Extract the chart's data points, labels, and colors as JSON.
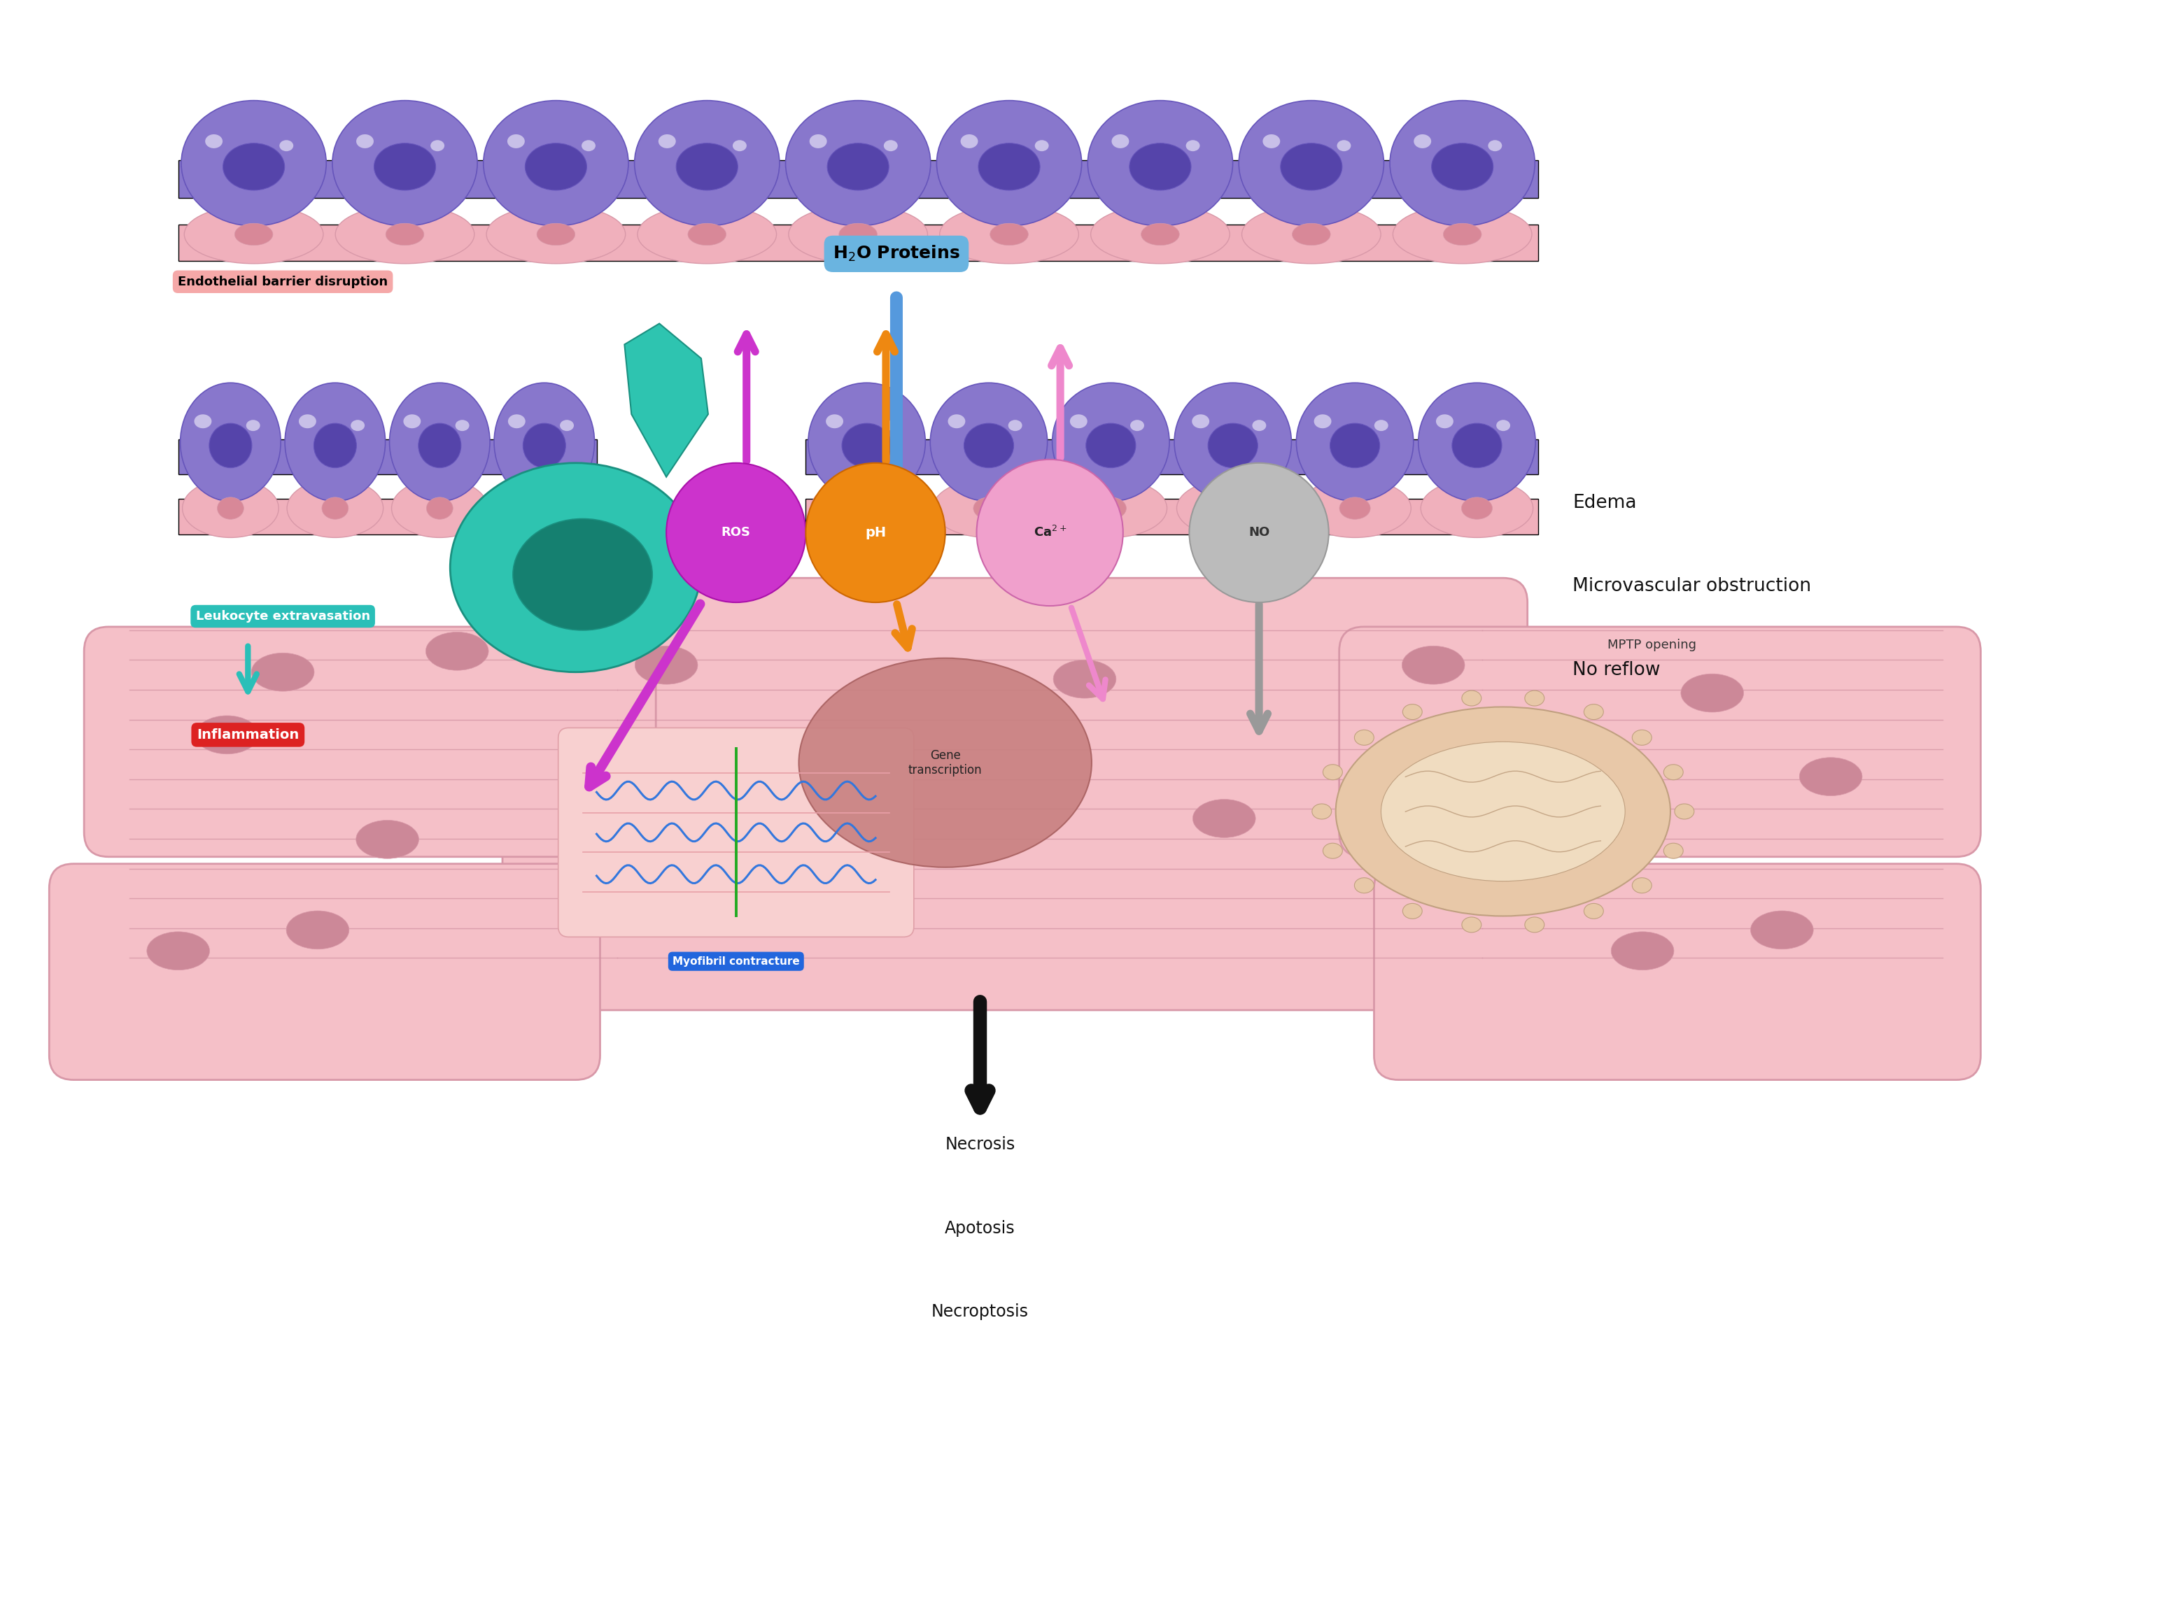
{
  "fig_width": 30.88,
  "fig_height": 23.1,
  "bg_color": "#ffffff",
  "endothelial_label": "Endothelial barrier disruption",
  "h2o_label": "H₂O Proteins",
  "leukocyte_label": "Leukocyte extravasation",
  "inflammation_label": "Inflammation",
  "edema_line1": "Edema",
  "edema_line2": "Microvascular obstruction",
  "edema_line3": "No reflow",
  "gene_transcription_label": "Gene\ntranscription",
  "myofibril_label": "Myofibril contracture",
  "mptp_label": "MPTP opening",
  "outcome_line1": "Necrosis",
  "outcome_line2": "Apotosis",
  "outcome_line3": "Necroptosis",
  "ros_label": "ROS",
  "ph_label": "pH",
  "ca_label": "Ca²⁺",
  "no_label": "NO",
  "cell_purple": "#8877cc",
  "cell_purple_dark": "#5544aa",
  "cell_purple_outline": "#6655bb",
  "cell_pink_base": "#f0b0bc",
  "cell_pink_base_outline": "#d898a8",
  "cell_pink_nuc": "#d88898",
  "cell_pink_bump": "#f5c5cc",
  "endothelial_box_color": "#f5a8a8",
  "h2o_box_color": "#6ab4e0",
  "leukocyte_box_color": "#2abfb8",
  "inflammation_box_color": "#dd2222",
  "myofibril_box_color": "#2266dd",
  "muscle_fill": "#f5c0c8",
  "muscle_outline": "#d898a8",
  "muscle_striation": "#d090a0",
  "muscle_nuc": "#cc8898",
  "teal_body": "#2ec4b0",
  "teal_dark": "#1a9080",
  "teal_nucleus": "#158070",
  "ros_color": "#cc33cc",
  "ph_color": "#ee8811",
  "ca_color": "#f0a0cc",
  "no_color": "#bbbbbb",
  "no_outline": "#999999",
  "gene_color": "#c88080",
  "gene_outline": "#a86060",
  "mito_fill": "#e8c8a8",
  "mito_outline": "#c0a080",
  "blue_arrow": "#5599dd",
  "teal_arrow": "#2abfb8",
  "purple_arrow": "#cc33cc",
  "orange_arrow": "#ee8811",
  "pink_arrow": "#ee88cc",
  "gray_arrow": "#999999",
  "black_arrow": "#111111"
}
